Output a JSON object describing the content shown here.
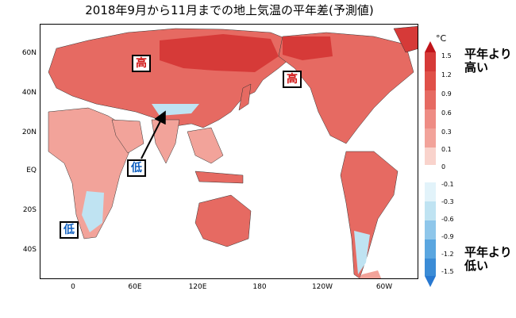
{
  "title": "2018年9月から11月までの地上気温の平年差(予測値)",
  "y_ticks": [
    "60N",
    "40N",
    "20N",
    "EQ",
    "20S",
    "40S"
  ],
  "x_ticks": [
    "0",
    "60E",
    "120E",
    "180",
    "120W",
    "60W"
  ],
  "annotations": {
    "high_eurasia": "高",
    "high_alaska": "高",
    "low_india": "低",
    "low_safrica": "低"
  },
  "legend": {
    "unit": "°C",
    "labels": [
      "1.5",
      "1.2",
      "0.9",
      "0.6",
      "0.3",
      "0.1",
      "0",
      "-0.1",
      "-0.3",
      "-0.6",
      "-0.9",
      "-1.2",
      "-1.5"
    ],
    "high_text_line1": "平年より",
    "high_text_line2": "高い",
    "low_text_line1": "平年より",
    "low_text_line2": "低い"
  },
  "colors": {
    "warm_strong": "#d63a38",
    "warm_mid": "#e66a62",
    "warm_light": "#f2a39a",
    "warm_pale": "#f9d3cc",
    "cool_light": "#bfe3f2",
    "cool_mid": "#8ec6ea"
  }
}
